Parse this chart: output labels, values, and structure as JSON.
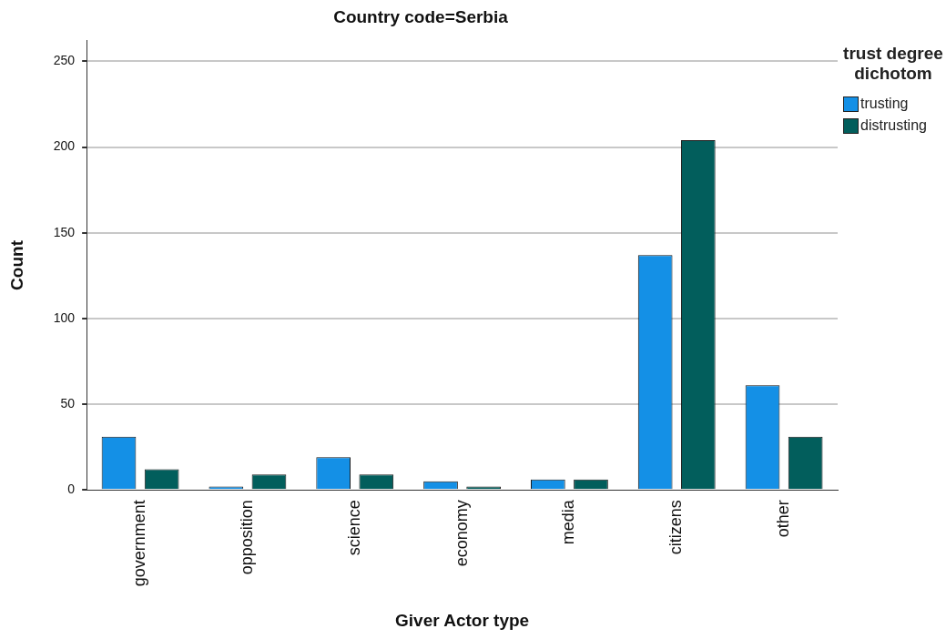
{
  "chart_data": {
    "type": "bar",
    "title": "Country code=Serbia",
    "xlabel": "Giver Actor type",
    "ylabel": "Count",
    "legend_title": "trust degree dichotom",
    "categories": [
      "government",
      "opposition",
      "science",
      "economy",
      "media",
      "citizens",
      "other"
    ],
    "series": [
      {
        "name": "trusting",
        "color": "#1490e6",
        "values": [
          31,
          2,
          19,
          5,
          6,
          137,
          61
        ]
      },
      {
        "name": "distrusting",
        "color": "#025e5c",
        "values": [
          12,
          9,
          9,
          2,
          6,
          204,
          31
        ]
      }
    ],
    "ylim": [
      0,
      262
    ],
    "yticks": [
      0,
      50,
      100,
      150,
      200,
      250
    ],
    "grid": "y",
    "legend": "right"
  }
}
